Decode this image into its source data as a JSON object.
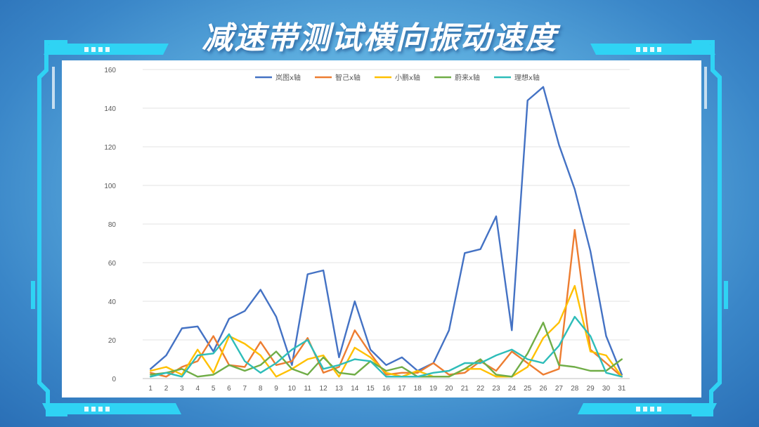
{
  "title": "减速带测试横向振动速度",
  "colors": {
    "frame": "#2fd3f4",
    "frame_dark": "#1ea6e0",
    "panel": "#ffffff"
  },
  "chart_data": {
    "type": "line",
    "x": [
      1,
      2,
      3,
      4,
      5,
      6,
      7,
      8,
      9,
      10,
      11,
      12,
      13,
      14,
      15,
      16,
      17,
      18,
      19,
      20,
      21,
      22,
      23,
      24,
      25,
      26,
      27,
      28,
      29,
      30,
      31
    ],
    "ylim": [
      0,
      160
    ],
    "yticks": [
      0,
      20,
      40,
      60,
      80,
      100,
      120,
      140,
      160
    ],
    "grid": true,
    "legend_position": "top",
    "series": [
      {
        "name": "岚图x轴",
        "color": "#4472c4",
        "values": [
          5,
          12,
          26,
          27,
          14,
          31,
          35,
          46,
          32,
          7,
          54,
          56,
          11,
          40,
          15,
          7,
          11,
          4,
          8,
          25,
          65,
          67,
          84,
          25,
          144,
          151,
          121,
          98,
          66,
          22,
          2
        ]
      },
      {
        "name": "智己x轴",
        "color": "#ed7d31",
        "values": [
          3,
          1,
          6,
          9,
          22,
          7,
          6,
          19,
          7,
          9,
          21,
          3,
          6,
          25,
          13,
          2,
          3,
          3,
          8,
          2,
          3,
          9,
          4,
          14,
          8,
          2,
          5,
          77,
          15,
          8,
          1
        ]
      },
      {
        "name": "小鹏x轴",
        "color": "#ffc000",
        "values": [
          4,
          6,
          2,
          15,
          3,
          22,
          18,
          12,
          1,
          5,
          10,
          12,
          1,
          16,
          11,
          3,
          1,
          4,
          1,
          1,
          5,
          5,
          1,
          1,
          6,
          21,
          29,
          48,
          14,
          12,
          1
        ]
      },
      {
        "name": "蔚来x轴",
        "color": "#70ad47",
        "values": [
          2,
          3,
          5,
          1,
          2,
          7,
          4,
          7,
          14,
          5,
          2,
          11,
          3,
          2,
          9,
          4,
          6,
          1,
          1,
          1,
          5,
          10,
          2,
          1,
          13,
          29,
          7,
          6,
          4,
          4,
          10
        ]
      },
      {
        "name": "理想x轴",
        "color": "#2ebdb9",
        "values": [
          1,
          3,
          1,
          12,
          13,
          23,
          9,
          3,
          8,
          15,
          20,
          5,
          7,
          10,
          9,
          1,
          1,
          1,
          3,
          4,
          8,
          8,
          12,
          15,
          10,
          8,
          17,
          32,
          22,
          3,
          1
        ]
      }
    ]
  }
}
